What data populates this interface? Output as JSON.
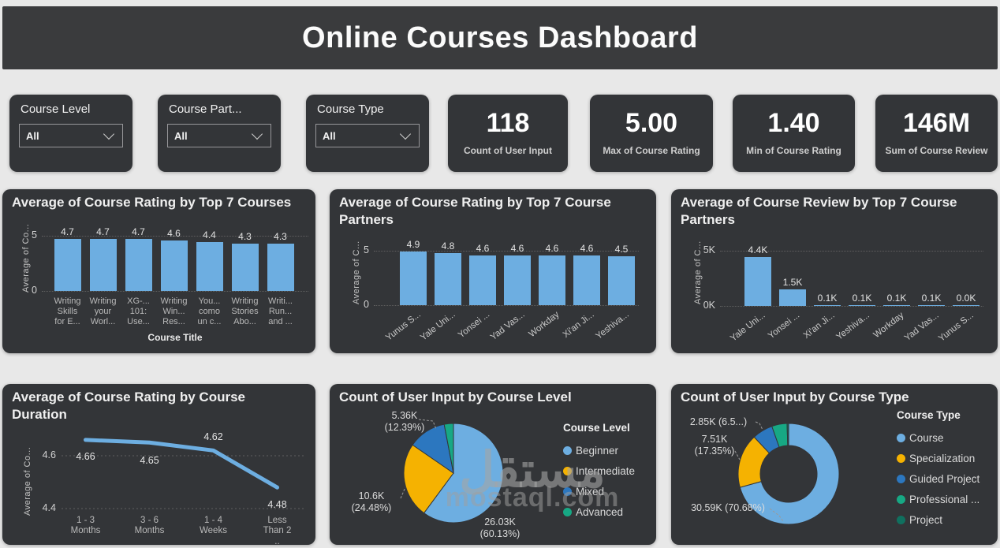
{
  "page": {
    "title": "Online Courses Dashboard"
  },
  "colors": {
    "background": "#e8e8e8",
    "card": "#333538",
    "header": "#3a3b3d",
    "bar": "#6daee1",
    "yellow": "#f5b201",
    "blue": "#2c77bf",
    "teal": "#17a884",
    "dark_teal": "#10705f",
    "gridline": "#5f5f5f"
  },
  "slicers": [
    {
      "label": "Course Level",
      "value": "All"
    },
    {
      "label": "Course Part...",
      "value": "All"
    },
    {
      "label": "Course Type",
      "value": "All"
    }
  ],
  "kpis": [
    {
      "value": "118",
      "label": "Count of User Input"
    },
    {
      "value": "5.00",
      "label": "Max of Course Rating"
    },
    {
      "value": "1.40",
      "label": "Min of Course Rating"
    },
    {
      "value": "146M",
      "label": "Sum of Course Review"
    }
  ],
  "chart_data": [
    {
      "type": "bar",
      "title": "Average of Course Rating by Top 7 Courses",
      "ylabel": "Average of Co...",
      "xlabel": "Course Title",
      "ylim": [
        0,
        5
      ],
      "yticks": [
        "5",
        "0"
      ],
      "grid": "dotted",
      "categories": [
        "Writing\nSkills\nfor E...",
        "Writing\nyour\nWorl...",
        "XG-...\n101:\nUse...",
        "Writing\nWin...\nRes...",
        "You...\ncomo\nun c...",
        "Writing\nStories\nAbo...",
        "Writi...\nRun...\nand ..."
      ],
      "values": [
        4.7,
        4.7,
        4.7,
        4.6,
        4.4,
        4.3,
        4.3
      ],
      "labels": [
        "4.7",
        "4.7",
        "4.7",
        "4.6",
        "4.4",
        "4.3",
        "4.3"
      ]
    },
    {
      "type": "bar",
      "title": "Average of Course Rating by Top 7 Course Partners",
      "ylabel": "Average of C...",
      "ylim": [
        0,
        5
      ],
      "yticks": [
        "5",
        "0"
      ],
      "grid": "dotted",
      "categories": [
        "Yunus S...",
        "Yale Uni...",
        "Yonsei ...",
        "Yad Vas...",
        "Workday",
        "Xi'an Ji...",
        "Yeshiva..."
      ],
      "values": [
        4.9,
        4.8,
        4.6,
        4.6,
        4.6,
        4.6,
        4.5
      ],
      "labels": [
        "4.9",
        "4.8",
        "4.6",
        "4.6",
        "4.6",
        "4.6",
        "4.5"
      ]
    },
    {
      "type": "bar",
      "title": "Average of Course Review by Top 7 Course Partners",
      "ylabel": "Average of C...",
      "ylim": [
        0,
        5000
      ],
      "yticks": [
        "5K",
        "0K"
      ],
      "grid": "dotted",
      "categories": [
        "Yale Uni...",
        "Yonsei ...",
        "Xi'an Ji...",
        "Yeshiva...",
        "Workday",
        "Yad Vas...",
        "Yunus S..."
      ],
      "values": [
        4400,
        1500,
        100,
        100,
        100,
        100,
        30
      ],
      "labels": [
        "4.4K",
        "1.5K",
        "0.1K",
        "0.1K",
        "0.1K",
        "0.1K",
        "0.0K"
      ]
    },
    {
      "type": "line",
      "title": "Average of Course Rating by Course Duration",
      "ylabel": "Average of Co...",
      "ylim": [
        4.3,
        4.75
      ],
      "yticks": [
        {
          "v": 4.6,
          "label": "4.6"
        },
        {
          "v": 4.4,
          "label": "4.4"
        }
      ],
      "grid": "dotted",
      "categories": [
        "1 - 3\nMonths",
        "3 - 6\nMonths",
        "1 - 4\nWeeks",
        "Less\nThan 2\n.."
      ],
      "values": [
        4.66,
        4.65,
        4.62,
        4.48
      ],
      "labels": [
        "4.66",
        "4.65",
        "4.62",
        "4.48"
      ]
    },
    {
      "type": "pie",
      "title": "Count of User Input by Course Level",
      "legend_title": "Course Level",
      "legend_position": "right",
      "slices": [
        {
          "name": "Beginner",
          "pct": 60.13,
          "value": "26.03K",
          "color": "#6daee1"
        },
        {
          "name": "Intermediate",
          "pct": 24.48,
          "value": "10.6K",
          "color": "#f5b201"
        },
        {
          "name": "Mixed",
          "pct": 12.39,
          "value": "5.36K",
          "color": "#2c77bf"
        },
        {
          "name": "Advanced",
          "pct": 3.0,
          "value": "",
          "color": "#17a884"
        }
      ],
      "callouts": [
        "5.36K\n(12.39%)",
        "10.6K\n(24.48%)",
        "26.03K\n(60.13%)"
      ]
    },
    {
      "type": "donut",
      "title": "Count of User Input by Course Type",
      "legend_title": "Course Type",
      "legend_position": "right",
      "slices": [
        {
          "name": "Course",
          "pct": 70.68,
          "value": "30.59K",
          "color": "#6daee1"
        },
        {
          "name": "Specialization",
          "pct": 17.35,
          "value": "7.51K",
          "color": "#f5b201"
        },
        {
          "name": "Guided Project",
          "pct": 6.58,
          "value": "2.85K",
          "color": "#2c77bf"
        },
        {
          "name": "Professional ...",
          "pct": 4.89,
          "value": "",
          "color": "#17a884"
        },
        {
          "name": "Project",
          "pct": 0.5,
          "value": "",
          "color": "#10705f"
        }
      ],
      "callouts": [
        "2.85K (6.5...)",
        "7.51K\n(17.35%)",
        "30.59K (70.68%)"
      ]
    }
  ],
  "watermark": {
    "arabic": "مستقل",
    "latin": "mostaql.com"
  }
}
